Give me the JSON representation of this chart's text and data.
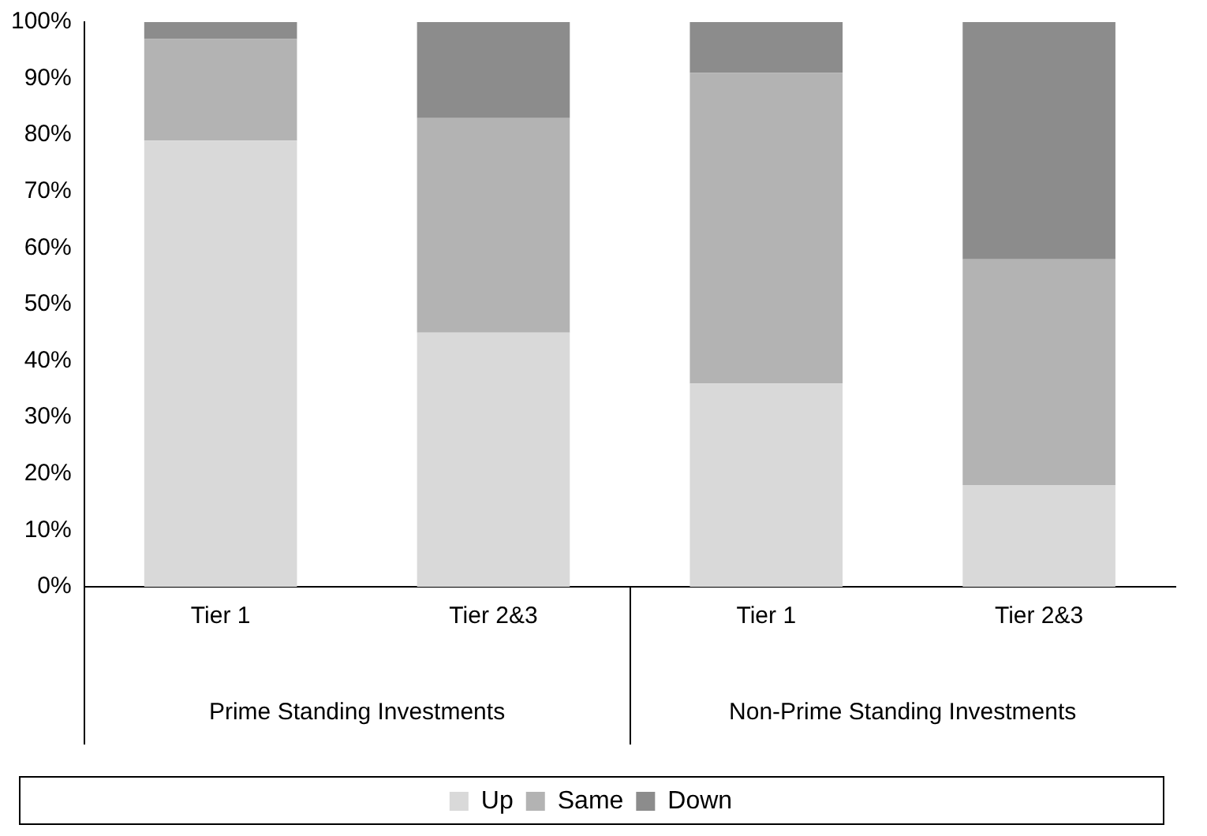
{
  "chart_data": {
    "type": "bar",
    "stacked": true,
    "categories": [
      "Tier 1",
      "Tier 2&3",
      "Tier 1",
      "Tier 2&3"
    ],
    "series": [
      {
        "name": "Up",
        "color": "#d9d9d9",
        "values": [
          79,
          45,
          36,
          18
        ]
      },
      {
        "name": "Same",
        "color": "#b3b3b3",
        "values": [
          18,
          38,
          55,
          40
        ]
      },
      {
        "name": "Down",
        "color": "#8c8c8c",
        "values": [
          3,
          17,
          9,
          42
        ]
      }
    ],
    "ylim": [
      0,
      100
    ],
    "yticks": [
      {
        "value": 0,
        "label": "0%"
      },
      {
        "value": 10,
        "label": "10%"
      },
      {
        "value": 20,
        "label": "20%"
      },
      {
        "value": 30,
        "label": "30%"
      },
      {
        "value": 40,
        "label": "40%"
      },
      {
        "value": 50,
        "label": "50%"
      },
      {
        "value": 60,
        "label": "60%"
      },
      {
        "value": 70,
        "label": "70%"
      },
      {
        "value": 80,
        "label": "80%"
      },
      {
        "value": 90,
        "label": "90%"
      },
      {
        "value": 100,
        "label": "100%"
      }
    ],
    "annotations": [
      "Prime Standing Investments",
      "Non-Prime Standing Investments"
    ],
    "grid": false,
    "legend": "bottom"
  }
}
